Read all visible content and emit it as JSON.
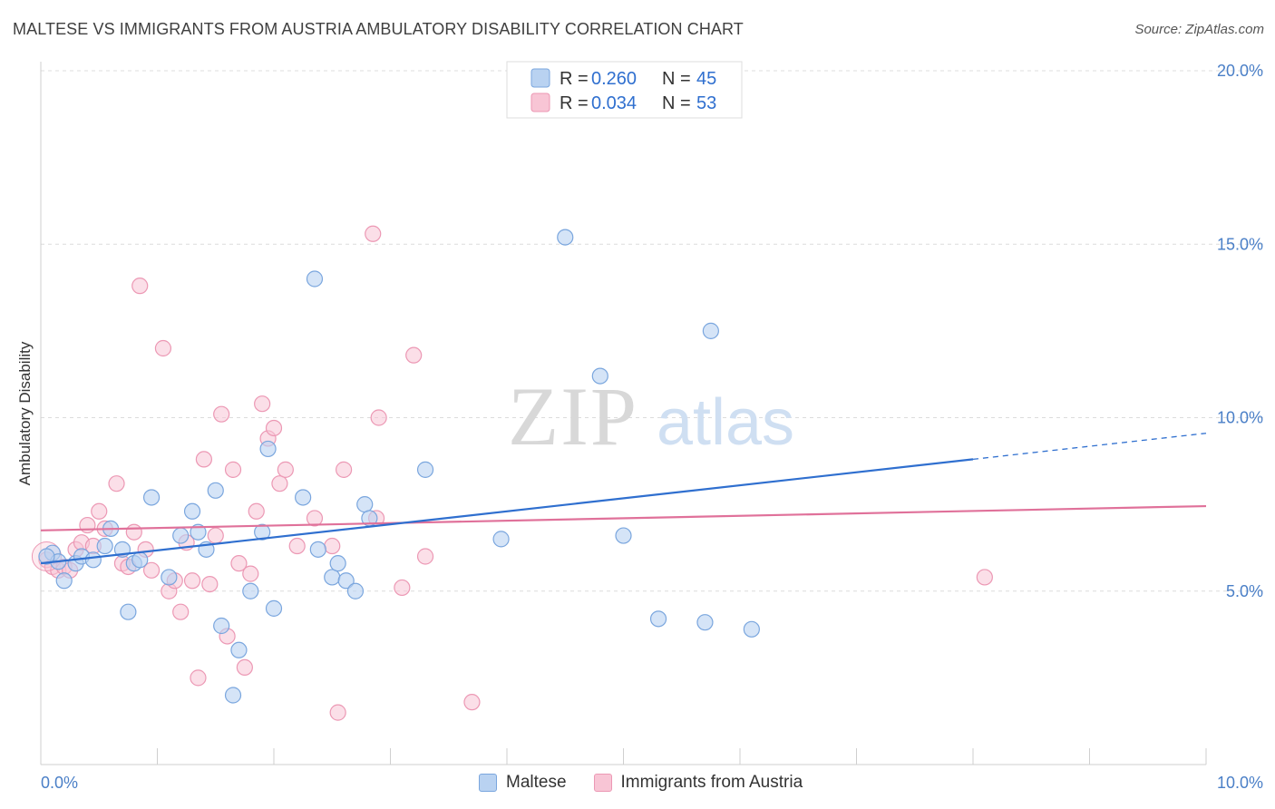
{
  "title": "MALTESE VS IMMIGRANTS FROM AUSTRIA AMBULATORY DISABILITY CORRELATION CHART",
  "source": "Source: ZipAtlas.com",
  "watermark": {
    "zip": "ZIP",
    "atlas": "atlas"
  },
  "legend": {
    "r_label": "R =",
    "n_label": "N =",
    "series": [
      {
        "name": "Maltese",
        "r": "0.260",
        "n": "45"
      },
      {
        "name": "Immigrants from Austria",
        "r": "0.034",
        "n": "53"
      }
    ]
  },
  "colors": {
    "maltese_fill": "#b9d2f1",
    "maltese_stroke": "#7aa6de",
    "maltese_line": "#2f6fcf",
    "austria_fill": "#f8c5d5",
    "austria_stroke": "#ec98b4",
    "austria_line": "#e0719a",
    "tick_color": "#4a7fc7"
  },
  "chart_data": {
    "type": "scatter",
    "title": "MALTESE VS IMMIGRANTS FROM AUSTRIA AMBULATORY DISABILITY CORRELATION CHART",
    "xlabel": "",
    "ylabel": "Ambulatory Disability",
    "xlim": [
      0,
      10
    ],
    "ylim": [
      0,
      20
    ],
    "x_tick_labels": [
      "0.0%",
      "10.0%"
    ],
    "y_ticks": [
      5,
      10,
      15,
      20
    ],
    "y_tick_labels": [
      "5.0%",
      "10.0%",
      "15.0%",
      "20.0%"
    ],
    "grid": true,
    "series": [
      {
        "name": "Maltese",
        "r": 0.26,
        "n": 45,
        "trend": {
          "x0": 0.0,
          "y0": 5.8,
          "x1": 8.0,
          "y1": 8.8,
          "dash_to_x": 10.0,
          "dash_to_y": 9.55
        },
        "points": [
          [
            0.1,
            6.1
          ],
          [
            0.15,
            5.85
          ],
          [
            0.2,
            5.3
          ],
          [
            0.3,
            5.8
          ],
          [
            0.35,
            6.0
          ],
          [
            0.45,
            5.9
          ],
          [
            0.55,
            6.3
          ],
          [
            0.6,
            6.8
          ],
          [
            0.7,
            6.2
          ],
          [
            0.75,
            4.4
          ],
          [
            0.8,
            5.8
          ],
          [
            0.85,
            5.9
          ],
          [
            0.95,
            7.7
          ],
          [
            1.1,
            5.4
          ],
          [
            1.2,
            6.6
          ],
          [
            1.3,
            7.3
          ],
          [
            1.35,
            6.7
          ],
          [
            1.42,
            6.2
          ],
          [
            1.5,
            7.9
          ],
          [
            1.55,
            4.0
          ],
          [
            1.65,
            2.0
          ],
          [
            1.7,
            3.3
          ],
          [
            1.8,
            5.0
          ],
          [
            1.9,
            6.7
          ],
          [
            1.95,
            9.1
          ],
          [
            2.0,
            4.5
          ],
          [
            2.25,
            7.7
          ],
          [
            2.35,
            14.0
          ],
          [
            2.38,
            6.2
          ],
          [
            2.5,
            5.4
          ],
          [
            2.55,
            5.8
          ],
          [
            2.62,
            5.3
          ],
          [
            2.7,
            5.0
          ],
          [
            2.78,
            7.5
          ],
          [
            2.82,
            7.1
          ],
          [
            3.3,
            8.5
          ],
          [
            3.95,
            6.5
          ],
          [
            4.5,
            15.2
          ],
          [
            4.8,
            11.2
          ],
          [
            5.0,
            6.6
          ],
          [
            5.3,
            4.2
          ],
          [
            5.7,
            4.1
          ],
          [
            5.75,
            12.5
          ],
          [
            6.1,
            3.9
          ],
          [
            0.05,
            6.0
          ]
        ]
      },
      {
        "name": "Immigrants from Austria",
        "r": 0.034,
        "n": 53,
        "trend": {
          "x0": 0.0,
          "y0": 6.75,
          "x1": 10.0,
          "y1": 7.45
        },
        "points": [
          [
            0.05,
            5.9
          ],
          [
            0.1,
            5.7
          ],
          [
            0.15,
            5.6
          ],
          [
            0.2,
            5.7
          ],
          [
            0.25,
            5.6
          ],
          [
            0.3,
            6.2
          ],
          [
            0.35,
            6.4
          ],
          [
            0.4,
            6.9
          ],
          [
            0.45,
            6.3
          ],
          [
            0.5,
            7.3
          ],
          [
            0.55,
            6.8
          ],
          [
            0.65,
            8.1
          ],
          [
            0.7,
            5.8
          ],
          [
            0.75,
            5.7
          ],
          [
            0.8,
            6.7
          ],
          [
            0.85,
            13.8
          ],
          [
            0.9,
            6.2
          ],
          [
            0.95,
            5.6
          ],
          [
            1.05,
            12.0
          ],
          [
            1.1,
            5.0
          ],
          [
            1.15,
            5.3
          ],
          [
            1.2,
            4.4
          ],
          [
            1.25,
            6.4
          ],
          [
            1.3,
            5.3
          ],
          [
            1.35,
            2.5
          ],
          [
            1.4,
            8.8
          ],
          [
            1.45,
            5.2
          ],
          [
            1.5,
            6.6
          ],
          [
            1.55,
            10.1
          ],
          [
            1.6,
            3.7
          ],
          [
            1.65,
            8.5
          ],
          [
            1.7,
            5.8
          ],
          [
            1.75,
            2.8
          ],
          [
            1.8,
            5.5
          ],
          [
            1.85,
            7.3
          ],
          [
            1.9,
            10.4
          ],
          [
            1.95,
            9.4
          ],
          [
            2.0,
            9.7
          ],
          [
            2.05,
            8.1
          ],
          [
            2.1,
            8.5
          ],
          [
            2.2,
            6.3
          ],
          [
            2.35,
            7.1
          ],
          [
            2.5,
            6.3
          ],
          [
            2.55,
            1.5
          ],
          [
            2.6,
            8.5
          ],
          [
            2.85,
            15.3
          ],
          [
            2.88,
            7.1
          ],
          [
            2.9,
            10.0
          ],
          [
            3.1,
            5.1
          ],
          [
            3.2,
            11.8
          ],
          [
            3.3,
            6.0
          ],
          [
            3.7,
            1.8
          ],
          [
            8.1,
            5.4
          ]
        ]
      }
    ]
  }
}
